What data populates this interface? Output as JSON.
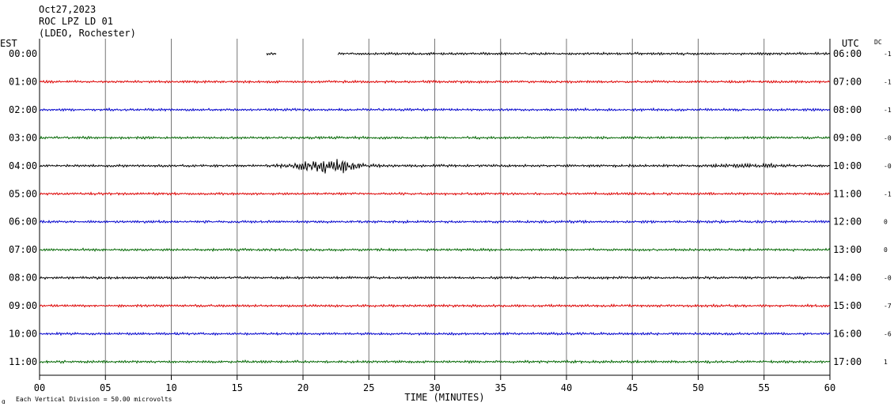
{
  "header": {
    "date": "Oct27,2023",
    "station": "ROC LPZ LD 01",
    "network": "(LDEO, Rochester)"
  },
  "chart_data": {
    "type": "helicorder",
    "left_axis_label": "EST",
    "right_axis_label": "UTC",
    "dc_label": "DC",
    "xlabel": "TIME (MINUTES)",
    "xlim": [
      0,
      60
    ],
    "x_ticks": [
      "00",
      "05",
      "10",
      "15",
      "20",
      "25",
      "30",
      "35",
      "40",
      "45",
      "50",
      "55",
      "60"
    ],
    "rows": [
      {
        "est": "00:00",
        "utc": "06:00",
        "dc": "-1",
        "color": "#000000"
      },
      {
        "est": "01:00",
        "utc": "07:00",
        "dc": "-1",
        "color": "#dd0000"
      },
      {
        "est": "02:00",
        "utc": "08:00",
        "dc": "-1",
        "color": "#0000cc"
      },
      {
        "est": "03:00",
        "utc": "09:00",
        "dc": "-0",
        "color": "#006600"
      },
      {
        "est": "04:00",
        "utc": "10:00",
        "dc": "-0",
        "color": "#000000"
      },
      {
        "est": "05:00",
        "utc": "11:00",
        "dc": "-1",
        "color": "#dd0000"
      },
      {
        "est": "06:00",
        "utc": "12:00",
        "dc": "0",
        "color": "#0000cc"
      },
      {
        "est": "07:00",
        "utc": "13:00",
        "dc": "0",
        "color": "#006600"
      },
      {
        "est": "08:00",
        "utc": "14:00",
        "dc": "-0",
        "color": "#000000"
      },
      {
        "est": "09:00",
        "utc": "15:00",
        "dc": "-7",
        "color": "#dd0000"
      },
      {
        "est": "10:00",
        "utc": "16:00",
        "dc": "-6",
        "color": "#0000cc"
      },
      {
        "est": "11:00",
        "utc": "17:00",
        "dc": "1",
        "color": "#006600"
      }
    ],
    "first_row_gap_minutes": [
      [
        0,
        17.2
      ],
      [
        18.0,
        22.6
      ]
    ],
    "event": {
      "row": 4,
      "start_min": 17.0,
      "peak_min": 22.7,
      "end_min": 28.5
    },
    "scale_note": "Each Vertical Division =   50.00 microvolts"
  }
}
